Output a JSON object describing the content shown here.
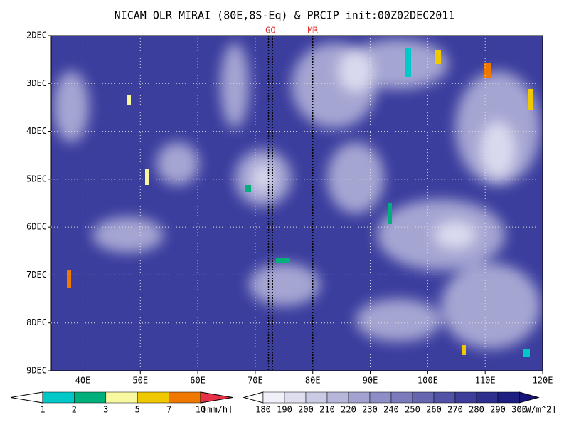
{
  "chart_data": {
    "type": "hovmoller",
    "title": "NICAM OLR MIRAI (80E,8S-Eq) & PRCIP init:00Z02DEC2011",
    "xlim": [
      34.5,
      120
    ],
    "xticks": [
      {
        "value": 40,
        "label": "40E"
      },
      {
        "value": 50,
        "label": "50E"
      },
      {
        "value": 60,
        "label": "60E"
      },
      {
        "value": 70,
        "label": "70E"
      },
      {
        "value": 80,
        "label": "80E"
      },
      {
        "value": 90,
        "label": "90E"
      },
      {
        "value": 100,
        "label": "100E"
      },
      {
        "value": 110,
        "label": "110E"
      },
      {
        "value": 120,
        "label": "120E"
      }
    ],
    "ylim": [
      2,
      9
    ],
    "yticks": [
      {
        "value": 2,
        "label": "2DEC"
      },
      {
        "value": 3,
        "label": "3DEC"
      },
      {
        "value": 4,
        "label": "4DEC"
      },
      {
        "value": 5,
        "label": "5DEC"
      },
      {
        "value": 6,
        "label": "6DEC"
      },
      {
        "value": 7,
        "label": "7DEC"
      },
      {
        "value": 8,
        "label": "8DEC"
      },
      {
        "value": 9,
        "label": "9DEC"
      }
    ],
    "grid": true,
    "markers": [
      {
        "label": "GO",
        "x": [
          72.3,
          73.0
        ]
      },
      {
        "label": "MR",
        "x": [
          80
        ]
      }
    ],
    "colorbars": [
      {
        "levels": [
          1,
          2,
          3,
          5,
          7,
          10
        ],
        "unit": "[mm/h]",
        "colors": [
          "#ffffff",
          "#00c8c8",
          "#00b07c",
          "#f8f8a0",
          "#f0c800",
          "#f07800",
          "#e83048"
        ]
      },
      {
        "levels": [
          180,
          190,
          200,
          210,
          220,
          230,
          240,
          250,
          260,
          270,
          280,
          290,
          300
        ],
        "unit": "[W/m^2]",
        "colors": [
          "#ffffff",
          "#f0f0f8",
          "#dedeee",
          "#cacae4",
          "#b6b6da",
          "#a2a2d0",
          "#8e8ec6",
          "#7a7abc",
          "#6666b0",
          "#5252a6",
          "#3e3e9a",
          "#2e2e8e",
          "#1e1e80",
          "#14147a"
        ]
      }
    ]
  }
}
